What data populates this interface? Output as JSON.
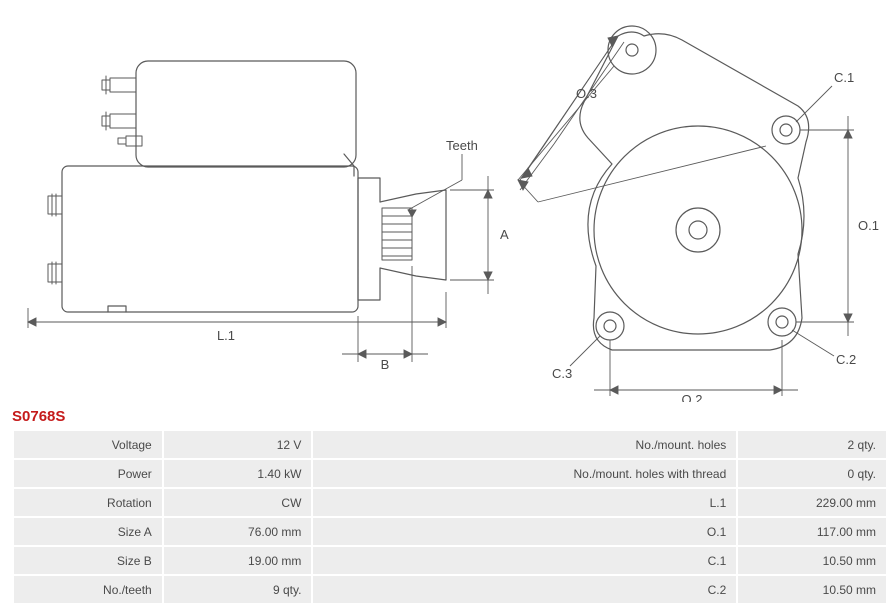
{
  "part_code": "S0768S",
  "diagram_labels": {
    "teeth": "Teeth",
    "A": "A",
    "B": "B",
    "L1": "L.1",
    "O1": "O.1",
    "O2": "O.2",
    "O3": "O.3",
    "C1": "C.1",
    "C2": "C.2",
    "C3": "C.3"
  },
  "diagram_style": {
    "stroke": "#5a5a5a",
    "stroke_width": 1.2,
    "dim_stroke": "#5a5a5a",
    "dim_stroke_width": 0.9,
    "label_font_size": 12,
    "background": "#ffffff"
  },
  "specs": {
    "rows": [
      {
        "label_l": "Voltage",
        "val_l": "12 V",
        "label_r": "No./mount. holes",
        "val_r": "2 qty."
      },
      {
        "label_l": "Power",
        "val_l": "1.40 kW",
        "label_r": "No./mount. holes with thread",
        "val_r": "0 qty."
      },
      {
        "label_l": "Rotation",
        "val_l": "CW",
        "label_r": "L.1",
        "val_r": "229.00 mm"
      },
      {
        "label_l": "Size A",
        "val_l": "76.00 mm",
        "label_r": "O.1",
        "val_r": "117.00 mm"
      },
      {
        "label_l": "Size B",
        "val_l": "19.00 mm",
        "label_r": "C.1",
        "val_r": "10.50 mm"
      },
      {
        "label_l": "No./teeth",
        "val_l": "9 qty.",
        "label_r": "C.2",
        "val_r": "10.50 mm"
      }
    ]
  }
}
